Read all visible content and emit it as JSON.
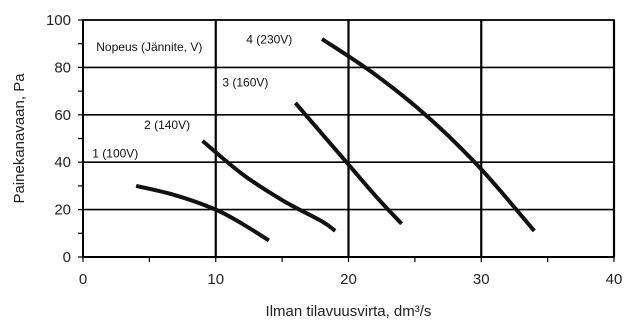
{
  "chart_data": {
    "type": "line",
    "xlabel": "Ilman tilavuusvirta, dm³/s",
    "ylabel": "Painekanavaan, Pa",
    "xlim": [
      0,
      40
    ],
    "ylim": [
      0,
      100
    ],
    "x_ticks": [
      0,
      10,
      20,
      30,
      40
    ],
    "y_ticks": [
      0,
      20,
      40,
      60,
      80,
      100
    ],
    "grid": true,
    "legend": "none",
    "annotations": [
      {
        "id": "legend-title",
        "text": "Nopeus (Jännite, V)",
        "x": 1,
        "y": 87
      },
      {
        "id": "label-1",
        "text": "1 (100V)",
        "x": 0.7,
        "y": 42
      },
      {
        "id": "label-2",
        "text": "2 (140V)",
        "x": 4.6,
        "y": 54
      },
      {
        "id": "label-3",
        "text": "3 (160V)",
        "x": 10.5,
        "y": 72
      },
      {
        "id": "label-4",
        "text": "4 (230V)",
        "x": 12.3,
        "y": 90
      }
    ],
    "series": [
      {
        "x": [
          4,
          7,
          10,
          12,
          14
        ],
        "y": [
          30,
          26,
          20,
          14,
          7
        ]
      },
      {
        "x": [
          9,
          12,
          15,
          18,
          19
        ],
        "y": [
          49,
          35,
          24,
          15,
          11
        ]
      },
      {
        "x": [
          16,
          18,
          20,
          22,
          24
        ],
        "y": [
          65,
          52,
          39,
          26,
          14
        ]
      },
      {
        "x": [
          18,
          22,
          26,
          30,
          34
        ],
        "y": [
          92,
          77,
          59,
          37,
          11
        ]
      }
    ]
  }
}
